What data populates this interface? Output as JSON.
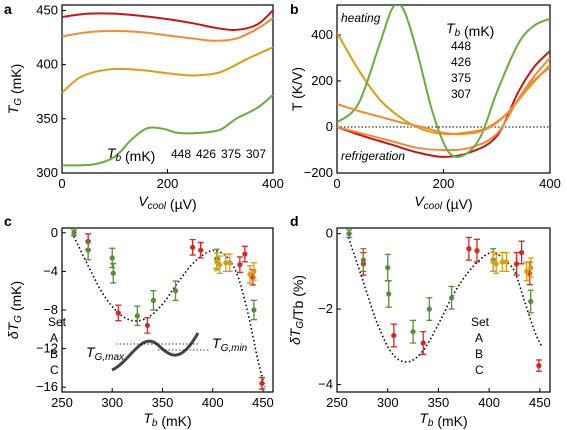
{
  "colors": {
    "448": "#c0171c",
    "426": "#f08a3c",
    "375": "#d4a017",
    "307": "#6aab3f",
    "A": "#d7261e",
    "B": "#5b8a3a",
    "C": "#d4a017"
  },
  "chart_data": [
    {
      "panel_letter": "a",
      "type": "line",
      "xlabel": "V_cool (µV)",
      "ylabel": "T_G (mK)",
      "xlim": [
        0,
        400
      ],
      "ylim": [
        300,
        455
      ],
      "xticks": [
        "0",
        "200",
        "400"
      ],
      "yticks": [
        "300",
        "350",
        "400",
        "450"
      ],
      "legend_title": "T_b (mK)",
      "legend_placement": "bottom-right",
      "series": [
        {
          "name": "448",
          "x": [
            0,
            50,
            100,
            150,
            200,
            250,
            290,
            330,
            370,
            400
          ],
          "y": [
            444,
            447,
            447,
            445,
            442,
            438,
            434,
            432,
            437,
            450
          ]
        },
        {
          "name": "426",
          "x": [
            0,
            50,
            100,
            150,
            200,
            250,
            290,
            330,
            370,
            400
          ],
          "y": [
            426,
            430,
            431,
            430,
            427,
            424,
            422,
            424,
            433,
            443
          ]
        },
        {
          "name": "375",
          "x": [
            0,
            30,
            60,
            100,
            150,
            200,
            250,
            300,
            350,
            400
          ],
          "y": [
            374,
            387,
            393,
            396,
            395,
            392,
            390,
            393,
            405,
            416
          ]
        },
        {
          "name": "307",
          "x": [
            0,
            60,
            100,
            130,
            160,
            190,
            220,
            260,
            300,
            330,
            370,
            400
          ],
          "y": [
            307,
            308,
            315,
            330,
            341,
            341,
            337,
            337,
            340,
            350,
            360,
            372
          ]
        }
      ]
    },
    {
      "panel_letter": "b",
      "type": "line",
      "xlabel": "V_cool (µV)",
      "ylabel": "T (K/V)",
      "xlim": [
        0,
        400
      ],
      "ylim": [
        -200,
        530
      ],
      "xticks": [
        "0",
        "200",
        "400"
      ],
      "yticks": [
        "-200",
        "0",
        "200",
        "400"
      ],
      "zero_line": "dotted",
      "annotation_top": "heating",
      "annotation_bottom": "refrigeration",
      "legend_title": "T_b (mK)",
      "legend_placement": "top-right",
      "series": [
        {
          "name": "448",
          "x": [
            0,
            50,
            100,
            150,
            200,
            250,
            300,
            340,
            370,
            400
          ],
          "y": [
            0,
            -40,
            -75,
            -110,
            -130,
            -110,
            -40,
            150,
            260,
            330
          ]
        },
        {
          "name": "426",
          "x": [
            0,
            50,
            100,
            150,
            200,
            250,
            300,
            340,
            370,
            400
          ],
          "y": [
            0,
            -30,
            -60,
            -90,
            -100,
            -90,
            -30,
            120,
            220,
            300
          ]
        },
        {
          "name": "375",
          "x": [
            0,
            40,
            80,
            120,
            160,
            200,
            240,
            280,
            320,
            360,
            400
          ],
          "y": [
            410,
            250,
            120,
            40,
            -10,
            -30,
            -25,
            -5,
            60,
            170,
            270
          ]
        },
        {
          "name": "307",
          "x": [
            0,
            40,
            80,
            105,
            125,
            150,
            180,
            210,
            240,
            270,
            300,
            340,
            370,
            400
          ],
          "y": [
            20,
            100,
            360,
            520,
            510,
            330,
            60,
            -110,
            -120,
            -40,
            150,
            360,
            440,
            470
          ]
        },
        {
          "name": "",
          "x": [
            0,
            40,
            80,
            120,
            160,
            200,
            240,
            280,
            320,
            360,
            400
          ],
          "y": [
            100,
            70,
            45,
            20,
            0,
            -25,
            -30,
            -10,
            60,
            180,
            260
          ]
        }
      ]
    },
    {
      "panel_letter": "c",
      "type": "scatter",
      "xlabel": "T_b (mK)",
      "ylabel": "δT_G (mK)",
      "xlim": [
        250,
        460
      ],
      "ylim": [
        -16.5,
        0.5
      ],
      "xticks": [
        "250",
        "300",
        "350",
        "400",
        "450"
      ],
      "yticks": [
        "0",
        "-4",
        "-8",
        "-12",
        "-16"
      ],
      "legend_title": "Set",
      "legend_entries": [
        "A",
        "B",
        "C"
      ],
      "inset_labels": [
        "T_G,max",
        "T_G,min"
      ],
      "fit_curve": {
        "x": [
          260,
          275,
          290,
          305,
          320,
          335,
          350,
          365,
          380,
          395,
          405,
          415,
          425,
          435,
          445,
          452
        ],
        "y": [
          0,
          -3.2,
          -6.2,
          -8.2,
          -9.1,
          -8.8,
          -7.4,
          -5.2,
          -3.2,
          -2.0,
          -1.9,
          -2.6,
          -4.5,
          -8.3,
          -13.2,
          -16.0
        ]
      },
      "points": [
        {
          "set": "A",
          "x": 276,
          "y": -0.9,
          "err": 0.8
        },
        {
          "set": "A",
          "x": 306,
          "y": -8.3,
          "err": 0.8
        },
        {
          "set": "A",
          "x": 335,
          "y": -9.6,
          "err": 0.8
        },
        {
          "set": "A",
          "x": 380,
          "y": -1.5,
          "err": 0.8
        },
        {
          "set": "A",
          "x": 388,
          "y": -1.8,
          "err": 0.8
        },
        {
          "set": "A",
          "x": 427,
          "y": -3.3,
          "err": 0.8
        },
        {
          "set": "A",
          "x": 432,
          "y": -2.2,
          "err": 0.8
        },
        {
          "set": "A",
          "x": 440,
          "y": -4.6,
          "err": 0.8
        },
        {
          "set": "A",
          "x": 449,
          "y": -15.6,
          "err": 0.6
        },
        {
          "set": "B",
          "x": 262,
          "y": 0.0,
          "err": 0.3
        },
        {
          "set": "B",
          "x": 276,
          "y": -1.8,
          "err": 1.0
        },
        {
          "set": "B",
          "x": 300,
          "y": -2.6,
          "err": 1.0
        },
        {
          "set": "B",
          "x": 301,
          "y": -4.2,
          "err": 1.0
        },
        {
          "set": "B",
          "x": 325,
          "y": -8.6,
          "err": 1.0
        },
        {
          "set": "B",
          "x": 341,
          "y": -7.0,
          "err": 1.0
        },
        {
          "set": "B",
          "x": 363,
          "y": -6.0,
          "err": 1.0
        },
        {
          "set": "B",
          "x": 404,
          "y": -2.7,
          "err": 1.0
        },
        {
          "set": "B",
          "x": 441,
          "y": -8.0,
          "err": 1.0
        },
        {
          "set": "C",
          "x": 404,
          "y": -3.0,
          "err": 0.9
        },
        {
          "set": "C",
          "x": 407,
          "y": -3.3,
          "err": 0.9
        },
        {
          "set": "C",
          "x": 413,
          "y": -3.1,
          "err": 0.9
        },
        {
          "set": "C",
          "x": 417,
          "y": -3.1,
          "err": 0.9
        },
        {
          "set": "C",
          "x": 437,
          "y": -4.3,
          "err": 0.9
        },
        {
          "set": "C",
          "x": 441,
          "y": -4.0,
          "err": 0.9
        }
      ]
    },
    {
      "panel_letter": "d",
      "type": "scatter",
      "xlabel": "T_b (mK)",
      "ylabel": "δT_G/T_b (%)",
      "xlim": [
        250,
        460
      ],
      "ylim": [
        -4.2,
        0.15
      ],
      "xticks": [
        "250",
        "300",
        "350",
        "400",
        "450"
      ],
      "yticks": [
        "0",
        "-2",
        "-4"
      ],
      "legend_title": "Set",
      "legend_entries": [
        "A",
        "B",
        "C"
      ],
      "fit_curve": {
        "x": [
          260,
          275,
          290,
          305,
          320,
          335,
          350,
          365,
          380,
          395,
          405,
          415,
          425,
          435,
          445,
          452
        ],
        "y": [
          0,
          -1.2,
          -2.4,
          -3.2,
          -3.4,
          -3.1,
          -2.4,
          -1.6,
          -1.0,
          -0.6,
          -0.5,
          -0.7,
          -1.0,
          -1.8,
          -2.6,
          -3.0
        ]
      },
      "points": [
        {
          "set": "A",
          "x": 276,
          "y": -0.8,
          "err": 0.3
        },
        {
          "set": "A",
          "x": 306,
          "y": -2.7,
          "err": 0.3
        },
        {
          "set": "A",
          "x": 335,
          "y": -2.9,
          "err": 0.3
        },
        {
          "set": "A",
          "x": 380,
          "y": -0.4,
          "err": 0.3
        },
        {
          "set": "A",
          "x": 388,
          "y": -0.45,
          "err": 0.3
        },
        {
          "set": "A",
          "x": 427,
          "y": -0.8,
          "err": 0.3
        },
        {
          "set": "A",
          "x": 432,
          "y": -0.5,
          "err": 0.3
        },
        {
          "set": "A",
          "x": 440,
          "y": -1.05,
          "err": 0.3
        },
        {
          "set": "A",
          "x": 449,
          "y": -3.5,
          "err": 0.15
        },
        {
          "set": "B",
          "x": 262,
          "y": 0.0,
          "err": 0.1
        },
        {
          "set": "B",
          "x": 276,
          "y": -0.7,
          "err": 0.3
        },
        {
          "set": "B",
          "x": 300,
          "y": -0.9,
          "err": 0.35
        },
        {
          "set": "B",
          "x": 301,
          "y": -1.6,
          "err": 0.35
        },
        {
          "set": "B",
          "x": 325,
          "y": -2.6,
          "err": 0.3
        },
        {
          "set": "B",
          "x": 341,
          "y": -2.0,
          "err": 0.3
        },
        {
          "set": "B",
          "x": 363,
          "y": -1.7,
          "err": 0.3
        },
        {
          "set": "B",
          "x": 404,
          "y": -0.7,
          "err": 0.3
        },
        {
          "set": "B",
          "x": 441,
          "y": -1.8,
          "err": 0.3
        },
        {
          "set": "C",
          "x": 404,
          "y": -0.75,
          "err": 0.25
        },
        {
          "set": "C",
          "x": 407,
          "y": -0.8,
          "err": 0.25
        },
        {
          "set": "C",
          "x": 413,
          "y": -0.75,
          "err": 0.25
        },
        {
          "set": "C",
          "x": 417,
          "y": -0.75,
          "err": 0.25
        },
        {
          "set": "C",
          "x": 437,
          "y": -1.0,
          "err": 0.25
        },
        {
          "set": "C",
          "x": 441,
          "y": -0.9,
          "err": 0.25
        }
      ]
    }
  ]
}
